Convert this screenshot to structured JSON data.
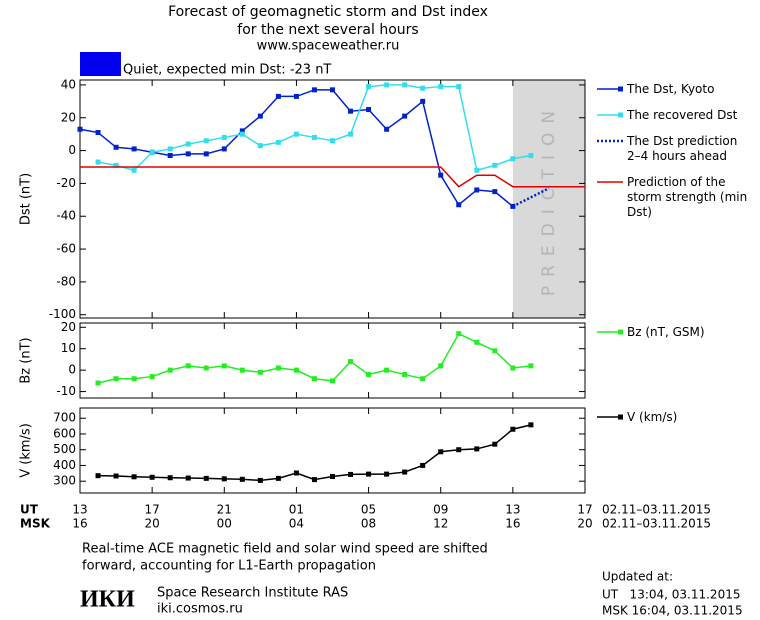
{
  "header": {
    "title_lines": [
      "Forecast of geomagnetic storm and Dst index",
      "for the next several hours",
      "www.spaceweather.ru"
    ],
    "status": {
      "color": "#0000ee",
      "text": "Quiet, expected min Dst: -23 nT"
    }
  },
  "time_axis": {
    "xlim": [
      0,
      28
    ],
    "ut_label": "UT",
    "msk_label": "MSK",
    "ut_ticks": [
      {
        "value": 0,
        "label": "13"
      },
      {
        "value": 4,
        "label": "17"
      },
      {
        "value": 8,
        "label": "21"
      },
      {
        "value": 12,
        "label": "01"
      },
      {
        "value": 16,
        "label": "05"
      },
      {
        "value": 20,
        "label": "09"
      },
      {
        "value": 24,
        "label": "13"
      },
      {
        "value": 28,
        "label": "17"
      }
    ],
    "msk_ticks": [
      {
        "value": 0,
        "label": "16"
      },
      {
        "value": 4,
        "label": "20"
      },
      {
        "value": 8,
        "label": "00"
      },
      {
        "value": 12,
        "label": "04"
      },
      {
        "value": 16,
        "label": "08"
      },
      {
        "value": 20,
        "label": "12"
      },
      {
        "value": 24,
        "label": "16"
      },
      {
        "value": 28,
        "label": "20"
      }
    ],
    "ut_range": "02.11–03.11.2015",
    "msk_range": "02.11–03.11.2015"
  },
  "chart_data": [
    {
      "type": "line",
      "ylabel": "Dst (nT)",
      "ylim": [
        -102,
        43
      ],
      "yticks": [
        40,
        20,
        0,
        -20,
        -40,
        -60,
        -80,
        -100
      ],
      "prediction_region": {
        "x": [
          24,
          28
        ],
        "label": "PREDICTION",
        "color": "#d9d9d9"
      },
      "series": [
        {
          "name": "The Dst, Kyoto",
          "color": "#0022cc",
          "markers": true,
          "style": "solid",
          "x": [
            0,
            1,
            2,
            3,
            4,
            5,
            6,
            7,
            8,
            9,
            10,
            11,
            12,
            13,
            14,
            15,
            16,
            17,
            18,
            19,
            20,
            21,
            22,
            23,
            24
          ],
          "values": [
            13,
            11,
            2,
            1,
            -1,
            -3,
            -2,
            -2,
            1,
            12,
            21,
            33,
            33,
            37,
            37,
            24,
            25,
            13,
            21,
            30,
            -15,
            -33,
            -24,
            -25,
            -34
          ]
        },
        {
          "name": "The recovered Dst",
          "color": "#33ddee",
          "markers": true,
          "style": "solid",
          "x": [
            1,
            2,
            3,
            4,
            5,
            6,
            7,
            8,
            9,
            10,
            11,
            12,
            13,
            14,
            15,
            16,
            17,
            18,
            19,
            20,
            21,
            22,
            23,
            24,
            25
          ],
          "values": [
            -7,
            -9,
            -12,
            -1,
            1,
            4,
            6,
            8,
            10,
            3,
            5,
            10,
            8,
            6,
            10,
            39,
            40,
            40,
            38,
            39,
            39,
            -12,
            -9,
            -5,
            -3
          ]
        },
        {
          "name": "The Dst prediction 2–4 hours ahead",
          "color": "#0022cc",
          "markers": false,
          "style": "dotted",
          "x": [
            24,
            26
          ],
          "values": [
            -34,
            -23
          ]
        },
        {
          "name": "Prediction of the storm strength (min Dst)",
          "color": "#dd0000",
          "markers": false,
          "style": "solid",
          "x": [
            0,
            20,
            21,
            22,
            23,
            24,
            28
          ],
          "values": [
            -10,
            -10,
            -22,
            -15,
            -15,
            -22,
            -22
          ]
        }
      ]
    },
    {
      "type": "line",
      "ylabel": "Bz (nT)",
      "ylim": [
        -13,
        22
      ],
      "yticks": [
        20,
        10,
        0,
        -10
      ],
      "series": [
        {
          "name": "Bz (nT, GSM)",
          "color": "#22ee22",
          "markers": true,
          "style": "solid",
          "x": [
            1,
            2,
            3,
            4,
            5,
            6,
            7,
            8,
            9,
            10,
            11,
            12,
            13,
            14,
            15,
            16,
            17,
            18,
            19,
            20,
            21,
            22,
            23,
            24,
            25
          ],
          "values": [
            -6,
            -4,
            -4,
            -3,
            0,
            2,
            1,
            2,
            0,
            -1,
            1,
            0,
            -4,
            -5,
            4,
            -2,
            0,
            -2,
            -4,
            2,
            17,
            13,
            9,
            1,
            2
          ]
        }
      ]
    },
    {
      "type": "line",
      "ylabel": "V (km/s)",
      "ylim": [
        225,
        765
      ],
      "yticks": [
        700,
        600,
        500,
        400,
        300
      ],
      "series": [
        {
          "name": "V (km/s)",
          "color": "#000000",
          "markers": true,
          "style": "solid",
          "x": [
            1,
            2,
            3,
            4,
            5,
            6,
            7,
            8,
            9,
            10,
            11,
            12,
            13,
            14,
            15,
            16,
            17,
            18,
            19,
            20,
            21,
            22,
            23,
            24,
            25
          ],
          "values": [
            335,
            333,
            328,
            325,
            322,
            320,
            318,
            315,
            312,
            305,
            318,
            352,
            310,
            330,
            343,
            345,
            345,
            358,
            400,
            487,
            500,
            505,
            535,
            630,
            658
          ]
        }
      ]
    }
  ],
  "footer": {
    "note_lines": [
      "Real-time ACE magnetic field and solar wind speed are shifted",
      "forward, accounting for L1-Earth propagation"
    ],
    "logo": "ИКИ",
    "institute": "Space Research Institute RAS",
    "site": "iki.cosmos.ru",
    "updated_lines": [
      "Updated at:",
      "UT   13:04, 03.11.2015",
      "MSK 16:04, 03.11.2015"
    ]
  }
}
